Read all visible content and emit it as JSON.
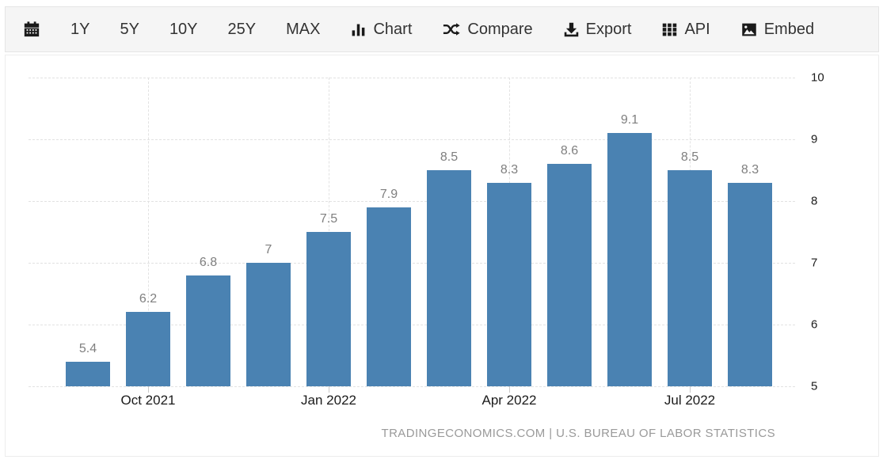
{
  "toolbar": {
    "calendar": {
      "icon": "calendar-icon"
    },
    "range_buttons": [
      {
        "label": "1Y"
      },
      {
        "label": "5Y"
      },
      {
        "label": "10Y"
      },
      {
        "label": "25Y"
      },
      {
        "label": "MAX"
      }
    ],
    "action_buttons": [
      {
        "icon": "bar-chart-icon",
        "label": "Chart"
      },
      {
        "icon": "shuffle-icon",
        "label": "Compare"
      },
      {
        "icon": "download-icon",
        "label": "Export"
      },
      {
        "icon": "grid-icon",
        "label": "API"
      },
      {
        "icon": "image-icon",
        "label": "Embed"
      }
    ]
  },
  "chart_data": {
    "type": "bar",
    "values": [
      5.4,
      6.2,
      6.8,
      7,
      7.5,
      7.9,
      8.5,
      8.3,
      8.6,
      9.1,
      8.5,
      8.3
    ],
    "bar_value_labels": [
      "5.4",
      "6.2",
      "6.8",
      "7",
      "7.5",
      "7.9",
      "8.5",
      "8.3",
      "8.6",
      "9.1",
      "8.5",
      "8.3"
    ],
    "x_ticks": [
      {
        "bar_index": 1,
        "label": "Oct 2021"
      },
      {
        "bar_index": 4,
        "label": "Jan 2022"
      },
      {
        "bar_index": 7,
        "label": "Apr 2022"
      },
      {
        "bar_index": 10,
        "label": "Jul 2022"
      }
    ],
    "y_ticks": [
      5,
      6,
      7,
      8,
      9,
      10
    ],
    "ylim": [
      5,
      10
    ],
    "grid": "dashed",
    "legend": "none",
    "bar_color": "#4a82b2",
    "value_label_color": "#7f7f7f",
    "source_note": "TRADINGECONOMICS.COM | U.S. BUREAU OF LABOR STATISTICS"
  }
}
